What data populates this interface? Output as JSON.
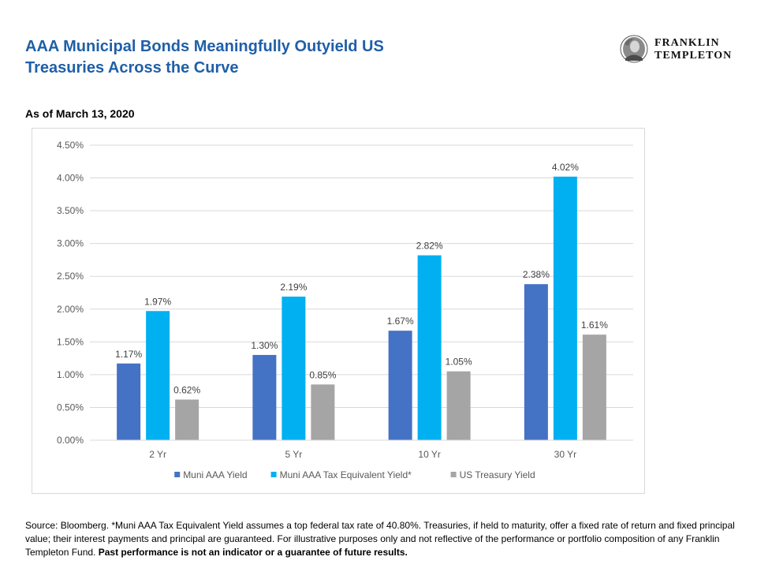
{
  "title_line1": "AAA Municipal Bonds Meaningfully Outyield US",
  "title_line2": "Treasuries Across the Curve",
  "logo": {
    "line1": "FRANKLIN",
    "line2": "TEMPLETON"
  },
  "subtitle": "As of March 13, 2020",
  "footnote": {
    "text": "Source: Bloomberg. *Muni AAA Tax Equivalent Yield assumes a top federal tax rate of 40.80%. Treasuries, if held to maturity, offer a fixed rate of return and fixed principal value; their interest payments and principal are guaranteed. For illustrative purposes only and not reflective of the performance or portfolio composition of any Franklin Templeton Fund.",
    "bold": "Past performance is not an indicator or a guarantee of future results."
  },
  "chart_data": {
    "type": "bar",
    "categories": [
      "2 Yr",
      "5 Yr",
      "10 Yr",
      "30 Yr"
    ],
    "series": [
      {
        "name": "Muni AAA Yield",
        "values": [
          1.17,
          1.3,
          1.67,
          2.38
        ],
        "labels": [
          "1.17%",
          "1.30%",
          "1.67%",
          "2.38%"
        ],
        "color": "#4472c4"
      },
      {
        "name": "Muni AAA Tax Equivalent Yield*",
        "values": [
          1.97,
          2.19,
          2.82,
          4.02
        ],
        "labels": [
          "1.97%",
          "2.19%",
          "2.82%",
          "4.02%"
        ],
        "color": "#00b0f0"
      },
      {
        "name": "US Treasury Yield",
        "values": [
          0.62,
          0.85,
          1.05,
          1.61
        ],
        "labels": [
          "0.62%",
          "0.85%",
          "1.05%",
          "1.61%"
        ],
        "color": "#a5a5a5"
      }
    ],
    "ylim": [
      0,
      4.5
    ],
    "yticks": [
      "0.00%",
      "0.50%",
      "1.00%",
      "1.50%",
      "2.00%",
      "2.50%",
      "3.00%",
      "3.50%",
      "4.00%",
      "4.50%"
    ],
    "ytick_values": [
      0,
      0.5,
      1.0,
      1.5,
      2.0,
      2.5,
      3.0,
      3.5,
      4.0,
      4.5
    ],
    "grid": true,
    "legend_position": "bottom"
  }
}
